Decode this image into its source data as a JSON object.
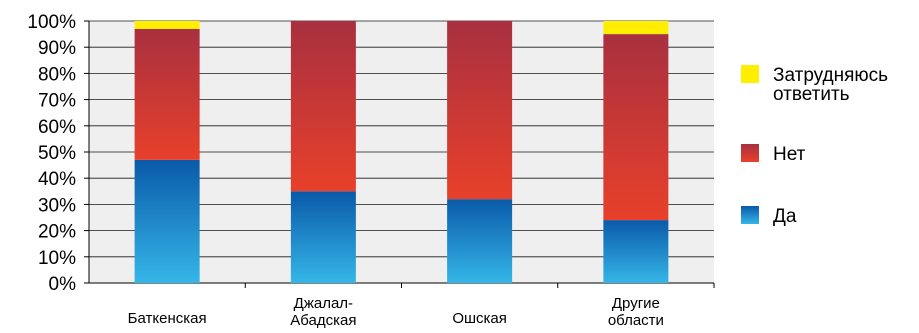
{
  "chart_data": {
    "type": "bar",
    "stacked": true,
    "title": "",
    "xlabel": "",
    "ylabel": "",
    "ylim": [
      0,
      100
    ],
    "yticks": [
      "0%",
      "10%",
      "20%",
      "30%",
      "40%",
      "50%",
      "60%",
      "70%",
      "80%",
      "90%",
      "100%"
    ],
    "grid": true,
    "legend_position": "right",
    "categories": [
      [
        "Баткенская"
      ],
      [
        "Джалал-",
        "Абадская"
      ],
      [
        "Ошская"
      ],
      [
        "Другие",
        "области"
      ]
    ],
    "series": [
      {
        "name": "Да",
        "values": [
          47,
          35,
          32,
          24
        ],
        "color_top": "#0a5aa8",
        "color_bottom": "#35b6e8"
      },
      {
        "name": "Нет",
        "values": [
          50,
          65,
          68,
          71
        ],
        "color_top": "#a83040",
        "color_bottom": "#e8402a"
      },
      {
        "name": "Затрудняюсь ответить",
        "values": [
          3,
          0,
          0,
          5
        ],
        "color_top": "#ffee00",
        "color_bottom": "#ffee00"
      }
    ],
    "legend": [
      {
        "series": 2,
        "lines": [
          "Затрудняюсь",
          "ответить"
        ]
      },
      {
        "series": 1,
        "lines": [
          "Нет"
        ]
      },
      {
        "series": 0,
        "lines": [
          "Да"
        ]
      }
    ]
  }
}
